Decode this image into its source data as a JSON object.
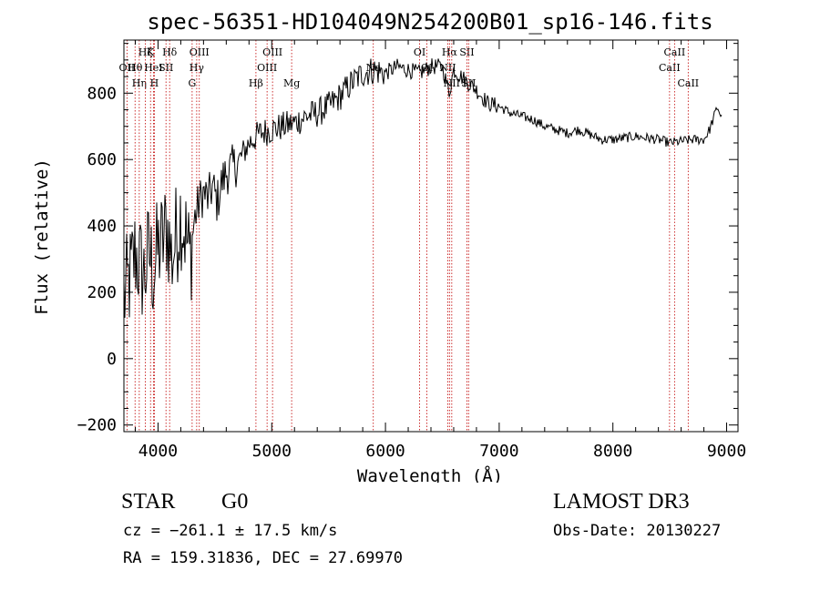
{
  "chart_data": {
    "type": "line",
    "title": "spec-56351-HD104049N254200B01_sp16-146.fits",
    "xlabel": "Wavelength (Å)",
    "ylabel": "Flux (relative)",
    "xlim": [
      3700,
      9100
    ],
    "ylim": [
      -220,
      960
    ],
    "xticks": [
      4000,
      5000,
      6000,
      7000,
      8000,
      9000
    ],
    "xtick_labels": [
      "4000",
      "5000",
      "6000",
      "7000",
      "8000",
      "9000"
    ],
    "yticks": [
      -200,
      0,
      200,
      400,
      600,
      800
    ],
    "ytick_labels": [
      "−200",
      "0",
      "200",
      "400",
      "600",
      "800"
    ],
    "series": [
      {
        "name": "flux",
        "x": [
          3700,
          3760,
          3800,
          3840,
          3880,
          3920,
          3960,
          4000,
          4040,
          4080,
          4120,
          4160,
          4200,
          4240,
          4280,
          4320,
          4360,
          4400,
          4440,
          4480,
          4520,
          4560,
          4600,
          4700,
          4800,
          4900,
          5000,
          5100,
          5200,
          5300,
          5400,
          5500,
          5600,
          5700,
          5800,
          5900,
          6000,
          6100,
          6200,
          6300,
          6400,
          6500,
          6560,
          6600,
          6700,
          6800,
          6900,
          7000,
          7100,
          7200,
          7300,
          7400,
          7500,
          7600,
          7700,
          7800,
          7900,
          8000,
          8100,
          8200,
          8300,
          8400,
          8500,
          8600,
          8700,
          8800,
          8850,
          8880,
          8900,
          8920,
          8940,
          8960
        ],
        "y": [
          180,
          250,
          320,
          280,
          250,
          320,
          260,
          330,
          350,
          400,
          300,
          370,
          440,
          380,
          300,
          420,
          470,
          500,
          480,
          520,
          470,
          530,
          560,
          590,
          650,
          680,
          690,
          700,
          710,
          730,
          740,
          760,
          790,
          830,
          860,
          870,
          860,
          880,
          870,
          860,
          880,
          880,
          800,
          870,
          840,
          810,
          770,
          760,
          740,
          730,
          720,
          700,
          690,
          680,
          690,
          675,
          660,
          660,
          665,
          670,
          665,
          660,
          650,
          655,
          660,
          660,
          690,
          720,
          740,
          760,
          740,
          720
        ],
        "color": "#000000"
      }
    ],
    "lines": [
      {
        "name": "OII",
        "x": 3727,
        "row": 2,
        "label": "OII"
      },
      {
        "name": "Hθ",
        "x": 3798,
        "row": 2,
        "label": "Hθ"
      },
      {
        "name": "Hη",
        "x": 3835,
        "row": 3,
        "label": "Hη"
      },
      {
        "name": "Hζ",
        "x": 3889,
        "row": 1,
        "label": "Hζ"
      },
      {
        "name": "K",
        "x": 3934,
        "row": 1,
        "label": "K"
      },
      {
        "name": "HeI",
        "x": 3960,
        "row": 2,
        "label": "HeI"
      },
      {
        "name": "H",
        "x": 3968,
        "row": 3,
        "label": "H"
      },
      {
        "name": "SII",
        "x": 4070,
        "row": 2,
        "label": "SII"
      },
      {
        "name": "Hδ",
        "x": 4102,
        "row": 1,
        "label": "Hδ"
      },
      {
        "name": "G",
        "x": 4300,
        "row": 3,
        "label": "G"
      },
      {
        "name": "Hγ",
        "x": 4340,
        "row": 2,
        "label": "Hγ"
      },
      {
        "name": "OIII",
        "x": 4363,
        "row": 1,
        "label": "OIII"
      },
      {
        "name": "Hβ",
        "x": 4861,
        "row": 3,
        "label": "Hβ"
      },
      {
        "name": "OIII",
        "x": 4959,
        "row": 2,
        "label": "OIII"
      },
      {
        "name": "OIII",
        "x": 5007,
        "row": 1,
        "label": "OIII"
      },
      {
        "name": "Mg",
        "x": 5175,
        "row": 3,
        "label": "Mg"
      },
      {
        "name": "Na",
        "x": 5893,
        "row": 2,
        "label": "Na"
      },
      {
        "name": "OI",
        "x": 6300,
        "row": 1,
        "label": "OI"
      },
      {
        "name": "OI",
        "x": 6364,
        "row": 2,
        "label": "OI"
      },
      {
        "name": "NII",
        "x": 6548,
        "row": 2,
        "label": "NII"
      },
      {
        "name": "Hα",
        "x": 6563,
        "row": 1,
        "label": "Hα"
      },
      {
        "name": "NII",
        "x": 6583,
        "row": 3,
        "label": "NII"
      },
      {
        "name": "SII",
        "x": 6716,
        "row": 1,
        "label": "SII"
      },
      {
        "name": "SII",
        "x": 6731,
        "row": 3,
        "label": "SII"
      },
      {
        "name": "CaII",
        "x": 8498,
        "row": 2,
        "label": "CaII"
      },
      {
        "name": "CaII",
        "x": 8542,
        "row": 1,
        "label": "CaII"
      },
      {
        "name": "CaII",
        "x": 8662,
        "row": 3,
        "label": "CaII"
      }
    ]
  },
  "info": {
    "obj_type": "STAR",
    "subclass": "G0",
    "survey": "LAMOST DR3",
    "cz": "cz = −261.1 ± 17.5 km/s",
    "obs_date": "Obs-Date: 20130227",
    "radec": "RA = 159.31836, DEC =  27.69970"
  },
  "colors": {
    "axis": "#000000",
    "spectrum": "#000000",
    "line_markers": "#c00000"
  }
}
